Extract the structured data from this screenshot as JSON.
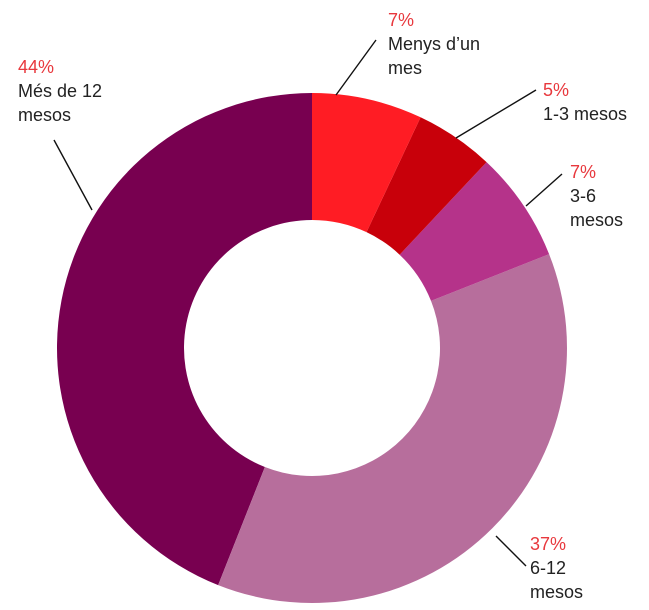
{
  "chart_data": {
    "type": "donut",
    "categories": [
      "Menys d’un mes",
      "1-3 mesos",
      "3-6 mesos",
      "6-12 mesos",
      "Més de 12 mesos"
    ],
    "values": [
      7,
      5,
      7,
      37,
      44
    ],
    "value_labels": [
      "7%",
      "5%",
      "7%",
      "37%",
      "44%"
    ],
    "colors": [
      "#ff1c24",
      "#c8000a",
      "#b5338a",
      "#b76e9c",
      "#780050"
    ]
  }
}
